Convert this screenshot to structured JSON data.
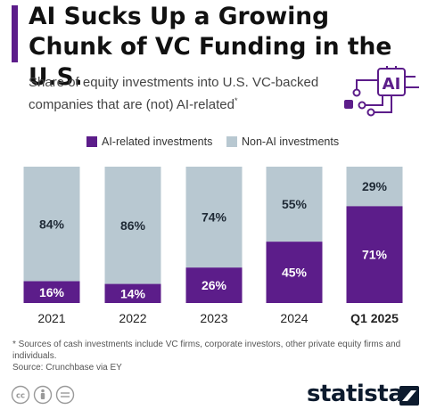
{
  "title": "AI Sucks Up a Growing Chunk of VC Funding in the U.S.",
  "subtitle": "Share of equity investments into U.S. VC-backed companies that are (not) AI-related",
  "subtitle_marker": "*",
  "icon_text": "AI",
  "colors": {
    "ai": "#5c1d8a",
    "non_ai": "#b8c8d1",
    "accent": "#5c1d8a",
    "label_dark": "#1f2a36"
  },
  "legend": [
    {
      "label": "AI-related investments",
      "color": "#5c1d8a"
    },
    {
      "label": "Non-AI investments",
      "color": "#b8c8d1"
    }
  ],
  "chart_data": {
    "type": "bar",
    "stacked": true,
    "orientation": "vertical",
    "categories": [
      "2021",
      "2022",
      "2023",
      "2024",
      "Q1 2025"
    ],
    "series": [
      {
        "name": "AI-related investments",
        "values": [
          16,
          14,
          26,
          45,
          71
        ],
        "labels": [
          "16%",
          "14%",
          "26%",
          "45%",
          "71%"
        ]
      },
      {
        "name": "Non-AI investments",
        "values": [
          84,
          86,
          74,
          55,
          29
        ],
        "labels": [
          "84%",
          "86%",
          "74%",
          "55%",
          "29%"
        ]
      }
    ],
    "ylim": [
      0,
      100
    ],
    "grid": false,
    "legend_position": "top"
  },
  "footnote": "* Sources of cash investments include VC firms, corporate investors, other private equity firms and individuals.",
  "source": "Source: Crunchbase via EY",
  "brand": "statista"
}
